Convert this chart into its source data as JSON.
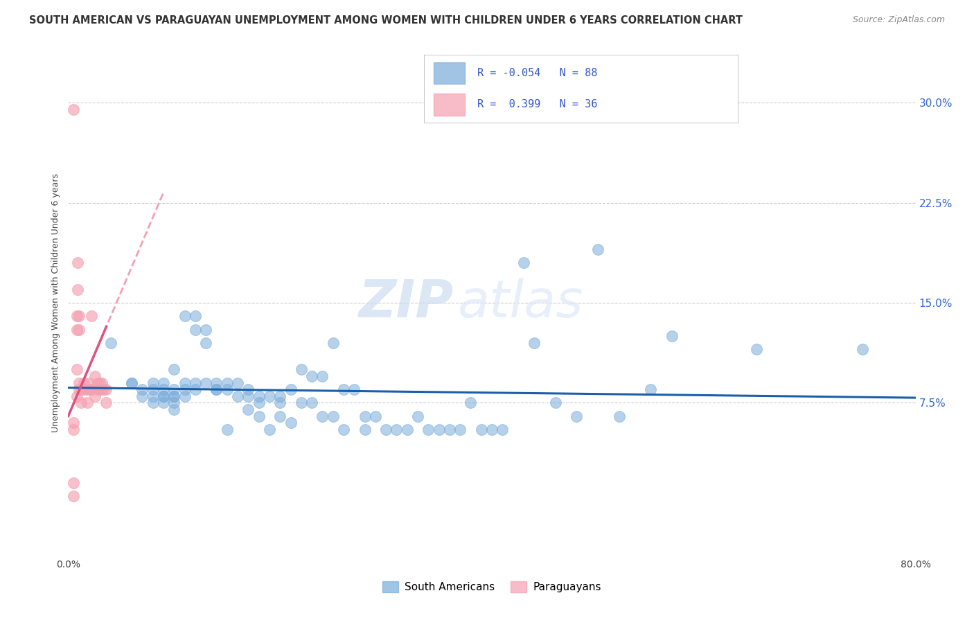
{
  "title": "SOUTH AMERICAN VS PARAGUAYAN UNEMPLOYMENT AMONG WOMEN WITH CHILDREN UNDER 6 YEARS CORRELATION CHART",
  "source": "Source: ZipAtlas.com",
  "ylabel": "Unemployment Among Women with Children Under 6 years",
  "xlim": [
    0.0,
    0.8
  ],
  "ylim": [
    -0.04,
    0.34
  ],
  "yticks_right": [
    0.075,
    0.15,
    0.225,
    0.3
  ],
  "yticklabels_right": [
    "7.5%",
    "15.0%",
    "22.5%",
    "30.0%"
  ],
  "grid_color": "#cccccc",
  "background_color": "#ffffff",
  "blue_color": "#7aacda",
  "pink_color": "#f4a0b0",
  "blue_line_color": "#1a5fa8",
  "pink_line_color": "#e05080",
  "pink_dash_color": "#f4a0b0",
  "blue_R": -0.054,
  "blue_N": 88,
  "pink_R": 0.399,
  "pink_N": 36,
  "legend_label_blue": "South Americans",
  "legend_label_pink": "Paraguayans",
  "watermark_zip": "ZIP",
  "watermark_atlas": "atlas",
  "blue_scatter_x": [
    0.04,
    0.06,
    0.06,
    0.07,
    0.07,
    0.08,
    0.08,
    0.08,
    0.08,
    0.09,
    0.09,
    0.09,
    0.09,
    0.09,
    0.1,
    0.1,
    0.1,
    0.1,
    0.1,
    0.1,
    0.11,
    0.11,
    0.11,
    0.11,
    0.12,
    0.12,
    0.12,
    0.12,
    0.13,
    0.13,
    0.13,
    0.14,
    0.14,
    0.14,
    0.15,
    0.15,
    0.15,
    0.16,
    0.16,
    0.17,
    0.17,
    0.17,
    0.18,
    0.18,
    0.18,
    0.19,
    0.19,
    0.2,
    0.2,
    0.2,
    0.21,
    0.21,
    0.22,
    0.22,
    0.23,
    0.23,
    0.24,
    0.24,
    0.25,
    0.25,
    0.26,
    0.26,
    0.27,
    0.28,
    0.28,
    0.29,
    0.3,
    0.31,
    0.32,
    0.33,
    0.34,
    0.35,
    0.36,
    0.37,
    0.38,
    0.39,
    0.4,
    0.41,
    0.43,
    0.44,
    0.46,
    0.48,
    0.5,
    0.52,
    0.55,
    0.57,
    0.65,
    0.75
  ],
  "blue_scatter_y": [
    0.12,
    0.09,
    0.09,
    0.08,
    0.085,
    0.09,
    0.085,
    0.08,
    0.075,
    0.09,
    0.085,
    0.08,
    0.08,
    0.075,
    0.1,
    0.085,
    0.08,
    0.08,
    0.075,
    0.07,
    0.14,
    0.09,
    0.085,
    0.08,
    0.14,
    0.13,
    0.09,
    0.085,
    0.13,
    0.12,
    0.09,
    0.09,
    0.085,
    0.085,
    0.09,
    0.085,
    0.055,
    0.09,
    0.08,
    0.085,
    0.08,
    0.07,
    0.08,
    0.075,
    0.065,
    0.08,
    0.055,
    0.08,
    0.075,
    0.065,
    0.085,
    0.06,
    0.1,
    0.075,
    0.095,
    0.075,
    0.095,
    0.065,
    0.12,
    0.065,
    0.085,
    0.055,
    0.085,
    0.065,
    0.055,
    0.065,
    0.055,
    0.055,
    0.055,
    0.065,
    0.055,
    0.055,
    0.055,
    0.055,
    0.075,
    0.055,
    0.055,
    0.055,
    0.18,
    0.12,
    0.075,
    0.065,
    0.19,
    0.065,
    0.085,
    0.125,
    0.115,
    0.115
  ],
  "pink_scatter_x": [
    0.005,
    0.005,
    0.005,
    0.005,
    0.005,
    0.008,
    0.008,
    0.008,
    0.008,
    0.009,
    0.009,
    0.01,
    0.01,
    0.01,
    0.01,
    0.012,
    0.012,
    0.015,
    0.015,
    0.018,
    0.018,
    0.02,
    0.02,
    0.022,
    0.022,
    0.025,
    0.025,
    0.028,
    0.028,
    0.03,
    0.03,
    0.032,
    0.032,
    0.034,
    0.036,
    0.036
  ],
  "pink_scatter_y": [
    0.295,
    0.06,
    0.055,
    0.015,
    0.005,
    0.14,
    0.13,
    0.1,
    0.08,
    0.18,
    0.16,
    0.14,
    0.13,
    0.09,
    0.085,
    0.085,
    0.075,
    0.09,
    0.085,
    0.085,
    0.075,
    0.09,
    0.085,
    0.14,
    0.085,
    0.095,
    0.08,
    0.09,
    0.085,
    0.09,
    0.085,
    0.09,
    0.085,
    0.085,
    0.085,
    0.075
  ]
}
